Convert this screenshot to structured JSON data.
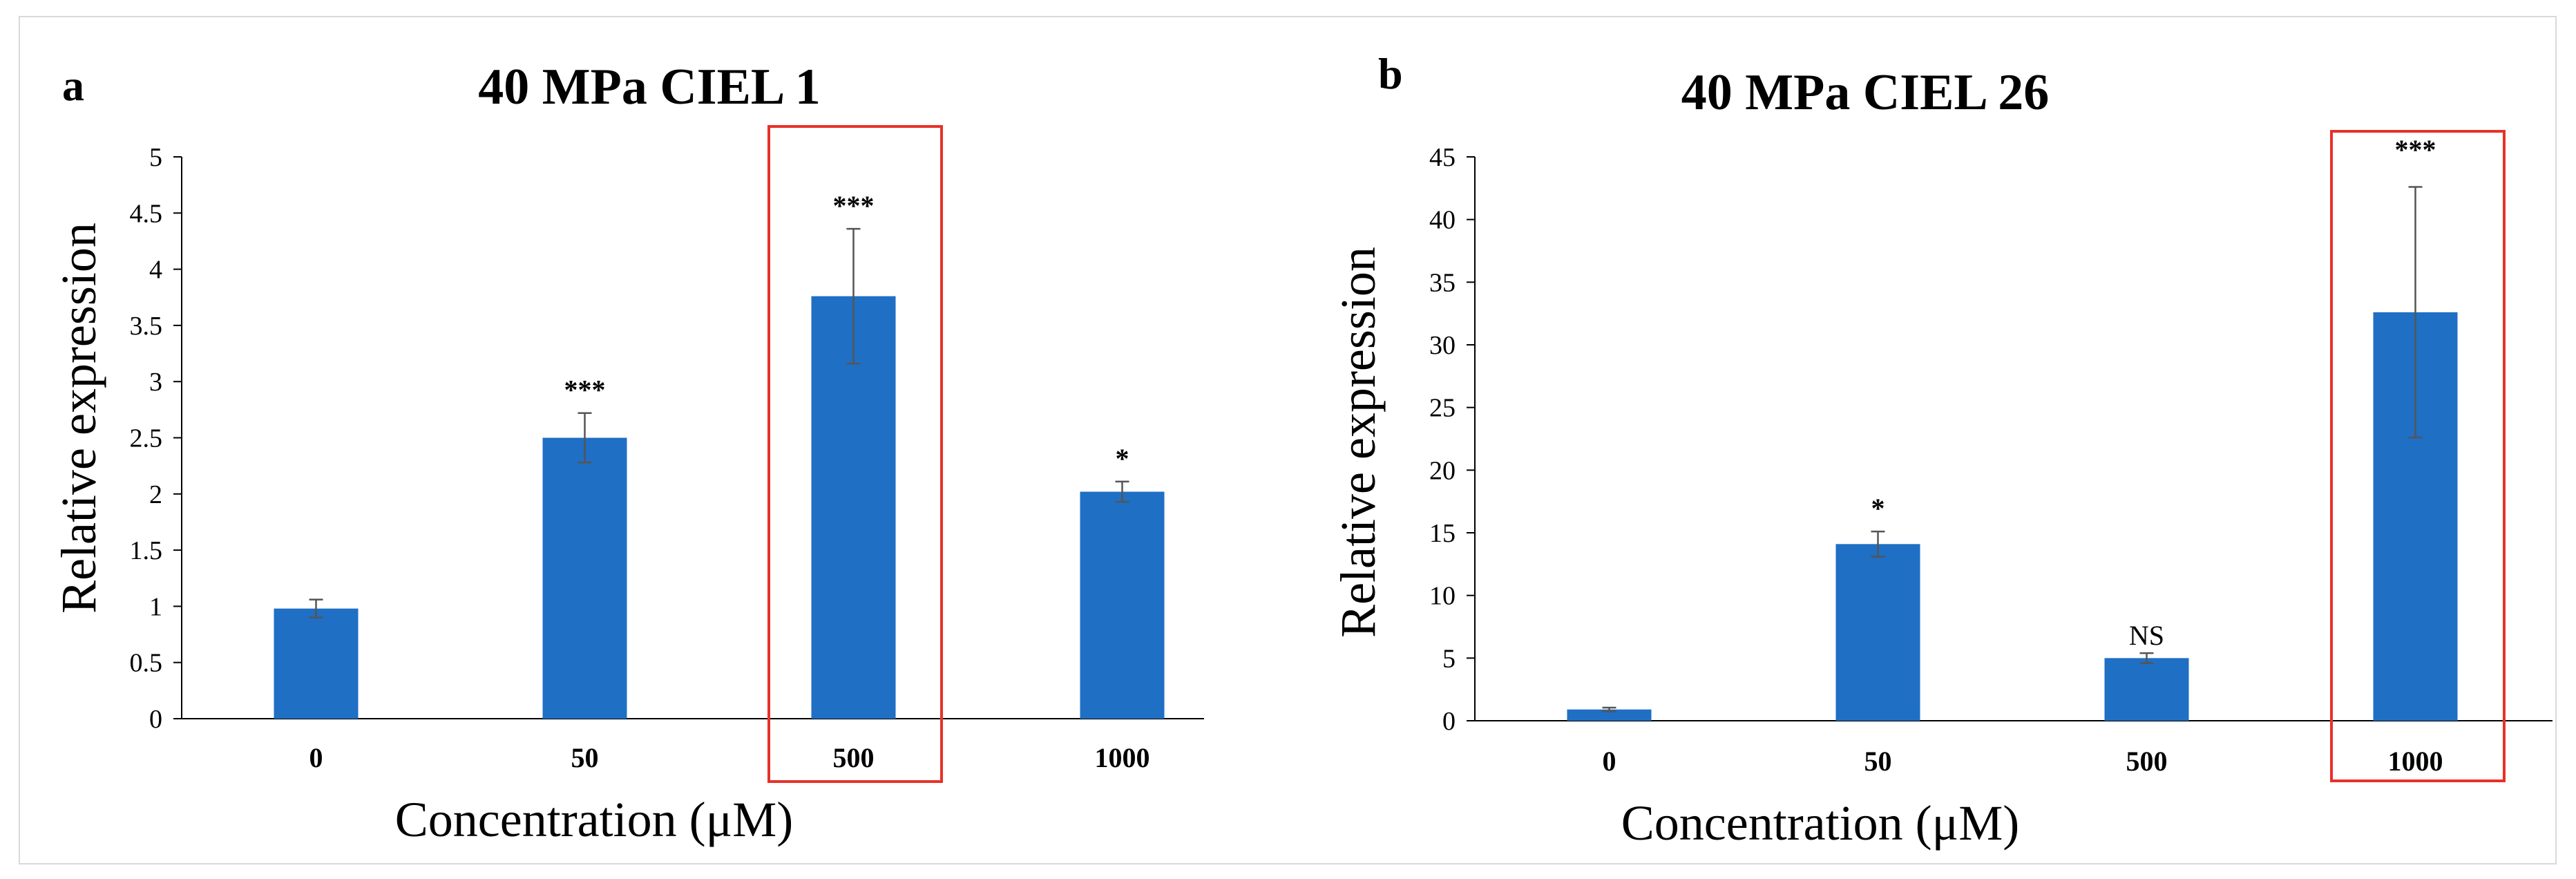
{
  "chart_data": [
    {
      "type": "bar",
      "panel": "a",
      "title": "40 MPa  CIEL 1",
      "xlabel": "Concentration (μM)",
      "ylabel": "Relative expression",
      "categories": [
        "0",
        "50",
        "500",
        "1000"
      ],
      "values": [
        0.98,
        2.5,
        3.76,
        2.02
      ],
      "errors": [
        0.08,
        0.22,
        0.6,
        0.09
      ],
      "significance": [
        "",
        "***",
        "***",
        "*"
      ],
      "highlighted_category": "500",
      "ylim": [
        0,
        5
      ],
      "yticks": [
        "0",
        "0.5",
        "1",
        "1.5",
        "2",
        "2.5",
        "3",
        "3.5",
        "4",
        "4.5",
        "5"
      ],
      "grid": false
    },
    {
      "type": "bar",
      "panel": "b",
      "title": "40 MPa    CIEL 26",
      "xlabel": "Concentration (μM)",
      "ylabel": "Relative expression",
      "categories": [
        "0",
        "50",
        "500",
        "1000"
      ],
      "values": [
        0.9,
        14.1,
        5.0,
        32.6
      ],
      "errors": [
        0.15,
        1.0,
        0.4,
        10.0
      ],
      "significance": [
        "",
        "*",
        "NS",
        "***"
      ],
      "highlighted_category": "1000",
      "ylim": [
        0,
        45
      ],
      "yticks": [
        "0",
        "5",
        "10",
        "15",
        "20",
        "25",
        "30",
        "35",
        "40",
        "45"
      ],
      "grid": false
    }
  ],
  "colors": {
    "bar": "#1f6fc4",
    "highlight": "#e8312a",
    "axis": "#000000",
    "error_bar": "#555555",
    "frame": "#d9d9d9"
  }
}
